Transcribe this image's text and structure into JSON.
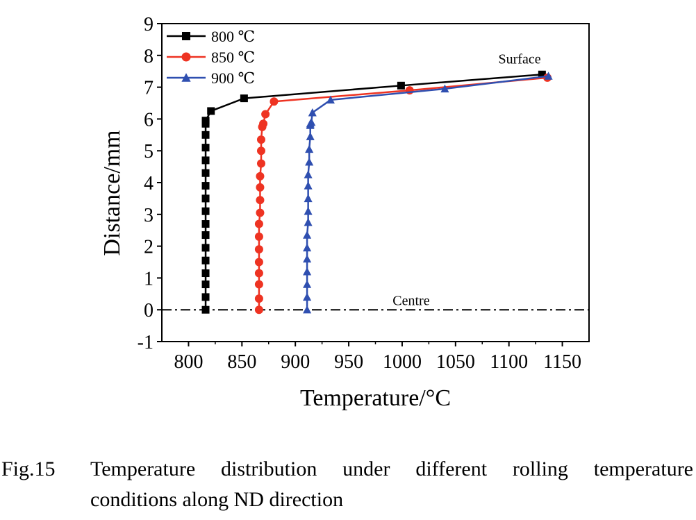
{
  "chart_data": {
    "type": "line",
    "xlabel": "Temperature/°C",
    "ylabel": "Distance/mm",
    "xlim": [
      775,
      1175
    ],
    "ylim": [
      -1,
      9
    ],
    "xticks": [
      "800",
      "850",
      "900",
      "950",
      "1000",
      "1050",
      "1100",
      "1150"
    ],
    "yticks": [
      "-1",
      "0",
      "1",
      "2",
      "3",
      "4",
      "5",
      "6",
      "7",
      "8",
      "9"
    ],
    "legend_position": "top-left",
    "grid": false,
    "series": [
      {
        "name": "800 ℃",
        "color": "#000000",
        "marker": "square",
        "x": [
          816,
          816,
          816,
          816,
          816,
          816,
          816,
          816,
          816,
          816,
          816,
          816,
          816,
          816,
          816,
          816,
          816,
          816,
          821,
          852,
          999,
          1131
        ],
        "y": [
          0,
          0.4,
          0.8,
          1.15,
          1.55,
          1.95,
          2.35,
          2.7,
          3.1,
          3.5,
          3.9,
          4.3,
          4.7,
          5.1,
          5.5,
          5.85,
          5.9,
          5.95,
          6.25,
          6.65,
          7.05,
          7.4
        ]
      },
      {
        "name": "850 ℃",
        "color": "#ee3322",
        "marker": "circle",
        "x": [
          866,
          866,
          866,
          866,
          866,
          866,
          866,
          866,
          867,
          867,
          867,
          867,
          868,
          868,
          868,
          869,
          870,
          872,
          880,
          1007,
          1136
        ],
        "y": [
          0,
          0.35,
          0.8,
          1.15,
          1.5,
          1.9,
          2.3,
          2.7,
          3.05,
          3.45,
          3.85,
          4.2,
          4.6,
          5.0,
          5.35,
          5.75,
          5.85,
          6.15,
          6.55,
          6.9,
          7.3
        ]
      },
      {
        "name": "900 ℃",
        "color": "#2f4fb0",
        "marker": "triangle",
        "x": [
          911,
          911,
          911,
          911,
          911,
          911,
          911,
          912,
          912,
          912,
          912,
          912,
          913,
          913,
          914,
          914,
          914,
          915,
          916,
          933,
          1040,
          1137
        ],
        "y": [
          0,
          0.4,
          0.8,
          1.2,
          1.6,
          1.95,
          2.35,
          2.75,
          3.1,
          3.5,
          3.9,
          4.25,
          4.65,
          5.05,
          5.45,
          5.8,
          5.85,
          5.9,
          6.2,
          6.6,
          6.95,
          7.35
        ]
      }
    ],
    "annotations": [
      {
        "text": "Surface",
        "x": 1110,
        "y": 7.9
      },
      {
        "text": "Centre",
        "x": 1000,
        "y": 0.3
      }
    ],
    "reference_line": {
      "y": 0,
      "style": "dash-dot"
    }
  },
  "caption": {
    "label": "Fig.15",
    "line1": "Temperature distribution under different rolling temperature",
    "line2": "conditions along ND direction"
  }
}
